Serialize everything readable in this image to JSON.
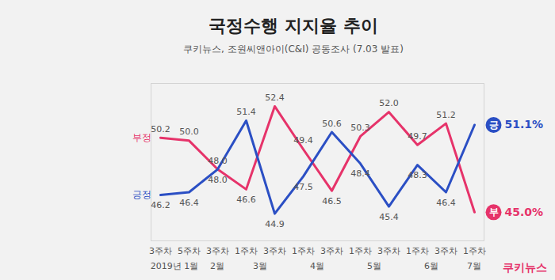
{
  "chart_data": {
    "type": "line",
    "title": "국정수행 지지율 추이",
    "subtitle": "쿠키뉴스, 조원씨앤아이(C&I) 공동조사 (7.03 발표)",
    "caption": "쿠키뉴스",
    "categories": [
      "3주차",
      "5주차",
      "3주차",
      "1주차",
      "3주차",
      "1주차",
      "3주차",
      "1주차",
      "3주차",
      "1주차",
      "3주차",
      "1주차"
    ],
    "x_groups": [
      "2019년 1월",
      "2019년 1월",
      "2월",
      "3월",
      "3월",
      "4월",
      "4월",
      "5월",
      "5월",
      "6월",
      "6월",
      "7월"
    ],
    "series": [
      {
        "name": "부정",
        "short_name": "부",
        "color": "#e6336a",
        "values": [
          50.2,
          50.0,
          48.0,
          46.6,
          52.4,
          49.4,
          46.5,
          50.3,
          52.0,
          49.7,
          51.2,
          45.0
        ],
        "value_labels": [
          "50.2",
          "50.0",
          "48.0",
          "46.6",
          "52.4",
          "49.4",
          "46.5",
          "50.3",
          "52.0",
          "49.7",
          "51.2",
          "45.0%"
        ]
      },
      {
        "name": "긍정",
        "short_name": "긍",
        "color": "#2b4fc4",
        "values": [
          46.2,
          46.4,
          48.0,
          51.4,
          44.9,
          47.5,
          50.6,
          48.4,
          45.4,
          48.3,
          46.4,
          51.1
        ],
        "value_labels": [
          "46.2",
          "46.4",
          "48.0",
          "51.4",
          "44.9",
          "47.5",
          "50.6",
          "48.4",
          "45.4",
          "48.3",
          "46.4",
          "51.1%"
        ]
      }
    ],
    "ylim": [
      43,
      54
    ],
    "yticks": [],
    "grid": false,
    "data_labels": true,
    "tick_labels": "x"
  }
}
